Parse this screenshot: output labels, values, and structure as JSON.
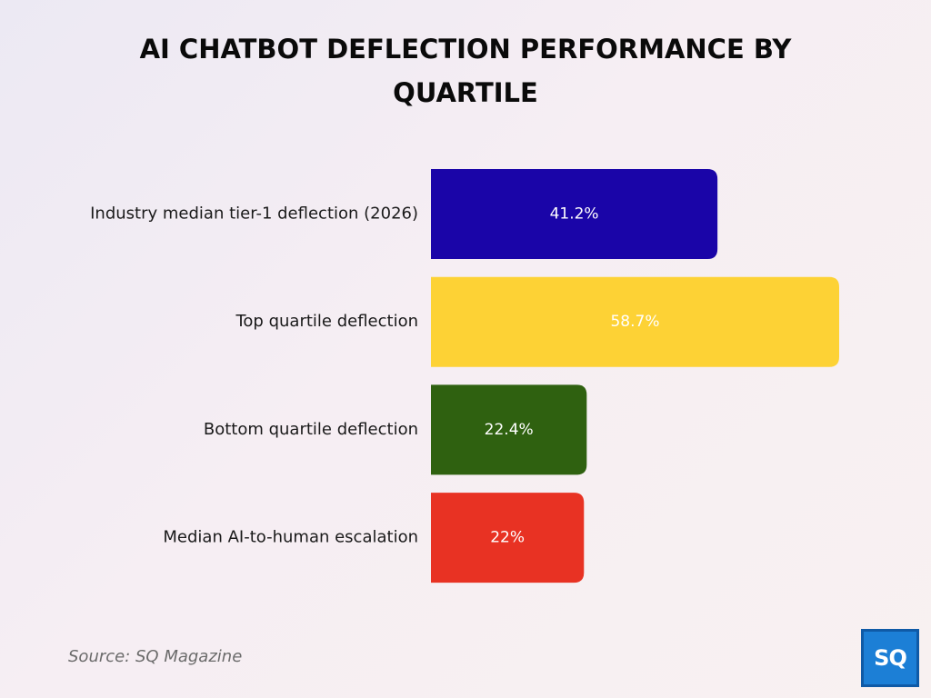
{
  "chart_data": {
    "type": "bar",
    "orientation": "horizontal",
    "title": "AI CHATBOT DEFLECTION PERFORMANCE BY QUARTILE",
    "categories": [
      "Industry median tier-1 deflection (2026)",
      "Top quartile deflection",
      "Bottom quartile deflection",
      "Median AI-to-human escalation"
    ],
    "values": [
      41.2,
      58.7,
      22.4,
      22
    ],
    "value_labels": [
      "41.2%",
      "58.7%",
      "22.4%",
      "22%"
    ],
    "colors": [
      "#1a05a8",
      "#fdd235",
      "#2f6110",
      "#e83223"
    ],
    "value_label_colors": [
      "#ffffff",
      "#1a1a1a",
      "#ffffff",
      "#ffffff"
    ],
    "xlim": [
      0,
      60
    ],
    "grid": false,
    "legend": "none"
  },
  "footer": {
    "source": "Source: SQ Magazine"
  },
  "logo": {
    "text": "SQ",
    "color": "#1c7fd6"
  }
}
